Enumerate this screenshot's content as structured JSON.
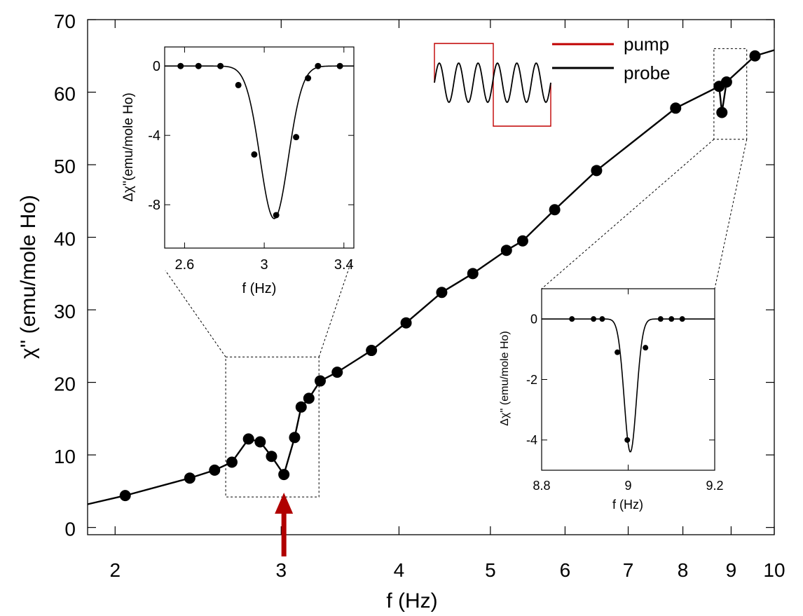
{
  "colors": {
    "pump": "#c00000",
    "probe": "#000000",
    "arrow": "#b00000",
    "ink": "#000000"
  },
  "legend": {
    "pump": "pump",
    "probe": "probe"
  },
  "chart_data": [
    {
      "id": "main",
      "type": "line",
      "xscale": "log",
      "xlabel": "f (Hz)",
      "ylabel": "χ'' (emu/mole Ho)",
      "xlim": [
        1.87,
        10
      ],
      "ylim": [
        -1,
        70
      ],
      "xticks": [
        2,
        3,
        4,
        5,
        6,
        7,
        8,
        9,
        10
      ],
      "xtick_labels": [
        "2",
        "3",
        "4",
        "5",
        "6",
        "7",
        "8",
        "9",
        "10"
      ],
      "yticks": [
        0,
        10,
        20,
        30,
        40,
        50,
        60,
        70
      ],
      "ytick_labels": [
        "0",
        "10",
        "20",
        "30",
        "40",
        "50",
        "60",
        "70"
      ],
      "grid": false,
      "series": [
        {
          "x": [
            1.87,
            2.05,
            2.4,
            2.55,
            2.66,
            2.77,
            2.85,
            2.93,
            3.02,
            3.1,
            3.15,
            3.21,
            3.3,
            3.44,
            3.74,
            4.07,
            4.44,
            4.79,
            5.2,
            5.41,
            5.85,
            6.48,
            7.86,
            8.74,
            8.8,
            8.9,
            9.54,
            10
          ],
          "y": [
            3.2,
            4.4,
            6.8,
            7.9,
            9.0,
            12.2,
            11.8,
            9.8,
            7.3,
            12.4,
            16.6,
            17.8,
            20.2,
            21.4,
            24.4,
            28.2,
            32.4,
            35.0,
            38.2,
            39.5,
            43.8,
            49.2,
            57.8,
            60.8,
            57.2,
            61.4,
            65.0,
            65.8
          ],
          "markers": [
            false,
            true,
            true,
            true,
            true,
            true,
            true,
            true,
            true,
            true,
            true,
            true,
            true,
            true,
            true,
            true,
            true,
            true,
            true,
            true,
            true,
            true,
            true,
            true,
            true,
            true,
            true,
            false
          ]
        }
      ],
      "annotations": [
        {
          "type": "arrow",
          "x": 3.02,
          "from_y": -4,
          "to_y": 4.8
        },
        {
          "type": "zoom-box",
          "x": [
            2.62,
            3.29
          ],
          "y": [
            4.2,
            23.5
          ]
        },
        {
          "type": "zoom-box",
          "x": [
            8.63,
            9.35
          ],
          "y": [
            53.5,
            66.0
          ]
        }
      ]
    },
    {
      "id": "inset-left",
      "type": "line",
      "xlabel": "f (Hz)",
      "ylabel": "Δχ''(emu/mole Ho)",
      "xlim": [
        2.5,
        3.45
      ],
      "ylim": [
        -10.5,
        1.1
      ],
      "xticks": [
        2.6,
        3.0,
        3.4
      ],
      "xtick_labels": [
        "2.6",
        "3",
        "3.4"
      ],
      "yticks": [
        0,
        -4,
        -8
      ],
      "ytick_labels": [
        "0",
        "-4",
        "-8"
      ],
      "points": {
        "x": [
          2.58,
          2.67,
          2.78,
          2.87,
          2.95,
          3.06,
          3.16,
          3.22,
          3.27,
          3.38
        ],
        "y": [
          0.0,
          0.0,
          0.0,
          -1.1,
          -5.1,
          -8.6,
          -4.1,
          -0.7,
          0.0,
          0.0
        ]
      },
      "fit": {
        "center": 3.05,
        "width": 0.1,
        "depth": -8.8
      }
    },
    {
      "id": "inset-right",
      "type": "line",
      "xlabel": "f (Hz)",
      "ylabel": "Δχ'' (emu/mole Ho)",
      "xlim": [
        8.8,
        9.2
      ],
      "ylim": [
        -5.0,
        1.0
      ],
      "xticks": [
        8.8,
        9.0,
        9.2
      ],
      "xtick_labels": [
        "8.8",
        "9",
        "9.2"
      ],
      "yticks": [
        0,
        -2,
        -4
      ],
      "ytick_labels": [
        "0",
        "-2",
        "-4"
      ],
      "points": {
        "x": [
          8.87,
          8.92,
          8.94,
          8.975,
          8.998,
          9.04,
          9.075,
          9.1,
          9.125
        ],
        "y": [
          0.0,
          0.0,
          0.0,
          -1.1,
          -4.0,
          -0.95,
          0.0,
          0.0,
          0.0
        ]
      },
      "fit": {
        "center": 9.005,
        "width": 0.02,
        "depth": -4.4
      }
    }
  ]
}
